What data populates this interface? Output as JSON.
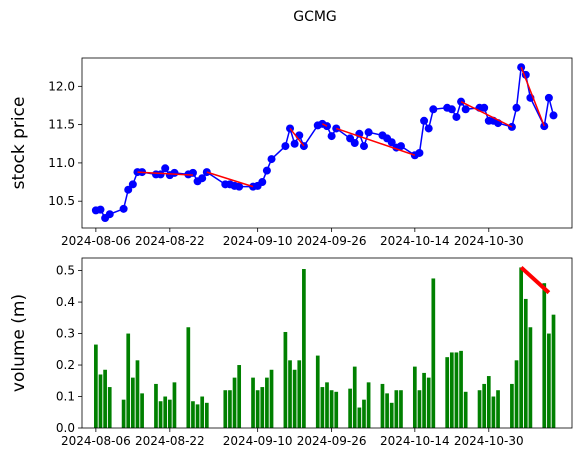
{
  "title": "GCMG",
  "chart_data": [
    {
      "type": "line",
      "ylabel": "stock price",
      "ylabel_color": "#0000ff",
      "color": "#0000ff",
      "marker": true,
      "x": [
        "2024-08-06",
        "2024-08-07",
        "2024-08-08",
        "2024-08-09",
        "2024-08-12",
        "2024-08-13",
        "2024-08-14",
        "2024-08-15",
        "2024-08-16",
        "2024-08-19",
        "2024-08-20",
        "2024-08-21",
        "2024-08-22",
        "2024-08-23",
        "2024-08-26",
        "2024-08-27",
        "2024-08-28",
        "2024-08-29",
        "2024-08-30",
        "2024-09-03",
        "2024-09-04",
        "2024-09-05",
        "2024-09-06",
        "2024-09-09",
        "2024-09-10",
        "2024-09-11",
        "2024-09-12",
        "2024-09-13",
        "2024-09-16",
        "2024-09-17",
        "2024-09-18",
        "2024-09-19",
        "2024-09-20",
        "2024-09-23",
        "2024-09-24",
        "2024-09-25",
        "2024-09-26",
        "2024-09-27",
        "2024-09-30",
        "2024-10-01",
        "2024-10-02",
        "2024-10-03",
        "2024-10-04",
        "2024-10-07",
        "2024-10-08",
        "2024-10-09",
        "2024-10-10",
        "2024-10-11",
        "2024-10-14",
        "2024-10-15",
        "2024-10-16",
        "2024-10-17",
        "2024-10-18",
        "2024-10-21",
        "2024-10-22",
        "2024-10-23",
        "2024-10-24",
        "2024-10-25",
        "2024-10-28",
        "2024-10-29",
        "2024-10-30",
        "2024-10-31",
        "2024-11-01",
        "2024-11-04",
        "2024-11-05",
        "2024-11-06",
        "2024-11-07",
        "2024-11-08",
        "2024-11-11",
        "2024-11-12",
        "2024-11-13"
      ],
      "values": [
        10.38,
        10.39,
        10.28,
        10.33,
        10.4,
        10.65,
        10.72,
        10.88,
        10.88,
        10.85,
        10.85,
        10.93,
        10.84,
        10.87,
        10.85,
        10.87,
        10.76,
        10.8,
        10.88,
        10.72,
        10.72,
        10.7,
        10.69,
        10.69,
        10.7,
        10.75,
        10.9,
        11.05,
        11.22,
        11.45,
        11.25,
        11.36,
        11.22,
        11.49,
        11.51,
        11.48,
        11.35,
        11.45,
        11.32,
        11.26,
        11.38,
        11.22,
        11.4,
        11.36,
        11.32,
        11.27,
        11.2,
        11.22,
        11.1,
        11.13,
        11.55,
        11.45,
        11.7,
        11.72,
        11.7,
        11.6,
        11.8,
        11.7,
        11.72,
        11.72,
        11.55,
        11.55,
        11.52,
        11.47,
        11.72,
        12.25,
        12.15,
        11.85,
        11.48,
        11.85,
        11.62
      ],
      "trend_lines": {
        "color": "#ff0000",
        "width": 1.5,
        "lines": [
          {
            "x": [
              "2024-08-15",
              "2024-08-27"
            ],
            "values": [
              10.88,
              10.84
            ]
          },
          {
            "x": [
              "2024-08-30",
              "2024-09-09"
            ],
            "values": [
              10.88,
              10.69
            ]
          },
          {
            "x": [
              "2024-09-17",
              "2024-09-20"
            ],
            "values": [
              11.45,
              11.22
            ]
          },
          {
            "x": [
              "2024-09-24",
              "2024-09-25"
            ],
            "values": [
              11.51,
              11.48
            ]
          },
          {
            "x": [
              "2024-09-27",
              "2024-10-14"
            ],
            "values": [
              11.45,
              11.1
            ]
          },
          {
            "x": [
              "2024-10-24",
              "2024-11-04"
            ],
            "values": [
              11.8,
              11.47
            ]
          },
          {
            "x": [
              "2024-11-06",
              "2024-11-11"
            ],
            "values": [
              12.25,
              11.48
            ]
          }
        ]
      },
      "xlim": [
        "2024-08-03",
        "2024-11-17"
      ],
      "xticks": [
        "2024-08-06",
        "2024-08-22",
        "2024-09-10",
        "2024-09-26",
        "2024-10-14",
        "2024-10-30"
      ],
      "ylim": [
        10.15,
        12.37
      ],
      "yticks": [
        10.5,
        {
          "value": 11,
          "label": "11.0"
        },
        11.5,
        {
          "value": 12,
          "label": "12.0"
        }
      ]
    },
    {
      "type": "bar",
      "ylabel": "volume (m)",
      "ylabel_color": "#008000",
      "color": "#008000",
      "x": [
        "2024-08-06",
        "2024-08-07",
        "2024-08-08",
        "2024-08-09",
        "2024-08-12",
        "2024-08-13",
        "2024-08-14",
        "2024-08-15",
        "2024-08-16",
        "2024-08-19",
        "2024-08-20",
        "2024-08-21",
        "2024-08-22",
        "2024-08-23",
        "2024-08-26",
        "2024-08-27",
        "2024-08-28",
        "2024-08-29",
        "2024-08-30",
        "2024-09-03",
        "2024-09-04",
        "2024-09-05",
        "2024-09-06",
        "2024-09-09",
        "2024-09-10",
        "2024-09-11",
        "2024-09-12",
        "2024-09-13",
        "2024-09-16",
        "2024-09-17",
        "2024-09-18",
        "2024-09-19",
        "2024-09-20",
        "2024-09-23",
        "2024-09-24",
        "2024-09-25",
        "2024-09-26",
        "2024-09-27",
        "2024-09-30",
        "2024-10-01",
        "2024-10-02",
        "2024-10-03",
        "2024-10-04",
        "2024-10-07",
        "2024-10-08",
        "2024-10-09",
        "2024-10-10",
        "2024-10-11",
        "2024-10-14",
        "2024-10-15",
        "2024-10-16",
        "2024-10-17",
        "2024-10-18",
        "2024-10-21",
        "2024-10-22",
        "2024-10-23",
        "2024-10-24",
        "2024-10-25",
        "2024-10-28",
        "2024-10-29",
        "2024-10-30",
        "2024-10-31",
        "2024-11-01",
        "2024-11-04",
        "2024-11-05",
        "2024-11-06",
        "2024-11-07",
        "2024-11-08",
        "2024-11-11",
        "2024-11-12",
        "2024-11-13"
      ],
      "values": [
        0.265,
        0.17,
        0.185,
        0.13,
        0.09,
        0.3,
        0.16,
        0.215,
        0.11,
        0.14,
        0.085,
        0.1,
        0.09,
        0.145,
        0.32,
        0.085,
        0.075,
        0.1,
        0.08,
        0.12,
        0.12,
        0.16,
        0.2,
        0.16,
        0.12,
        0.13,
        0.16,
        0.185,
        0.305,
        0.215,
        0.185,
        0.215,
        0.505,
        0.23,
        0.13,
        0.145,
        0.12,
        0.115,
        0.125,
        0.195,
        0.065,
        0.09,
        0.145,
        0.14,
        0.11,
        0.08,
        0.12,
        0.12,
        0.195,
        0.12,
        0.175,
        0.16,
        0.475,
        0.225,
        0.24,
        0.24,
        0.245,
        0.115,
        0.12,
        0.14,
        0.165,
        0.1,
        0.12,
        0.14,
        0.215,
        0.51,
        0.41,
        0.32,
        0.46,
        0.3,
        0.36
      ],
      "trend_lines": {
        "color": "#ff0000",
        "width": 4,
        "lines": [
          {
            "x": [
              "2024-11-06",
              "2024-11-12"
            ],
            "values": [
              0.51,
              0.43
            ]
          }
        ]
      },
      "xlim": [
        "2024-08-03",
        "2024-11-17"
      ],
      "xticks": [
        "2024-08-06",
        "2024-08-22",
        "2024-09-10",
        "2024-09-26",
        "2024-10-14",
        "2024-10-30"
      ],
      "ylim": [
        0,
        0.54
      ],
      "yticks": [
        {
          "value": 0,
          "label": "0.0"
        },
        0.1,
        0.2,
        0.3,
        0.4,
        0.5
      ]
    }
  ]
}
